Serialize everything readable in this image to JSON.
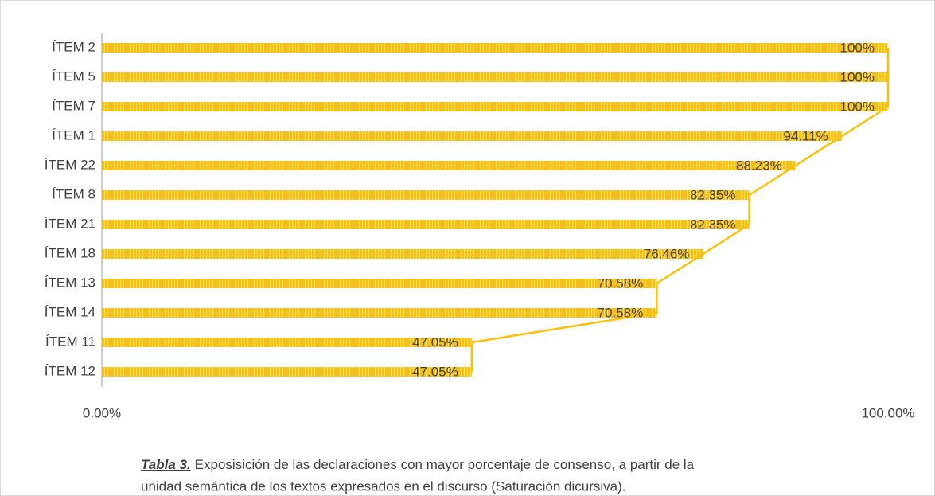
{
  "chart_data": {
    "type": "bar",
    "categories": [
      "ÍTEM 2",
      "ÍTEM 5",
      "ÍTEM 7",
      "ÍTEM 1",
      "ÍTEM 22",
      "ÍTEM 8",
      "ÍTEM 21",
      "ÍTEM 18",
      "ÍTEM 13",
      "ÍTEM 14",
      "ÍTEM 11",
      "ÍTEM 12"
    ],
    "values": [
      100,
      100,
      100,
      94.11,
      88.23,
      82.35,
      82.35,
      76.46,
      70.58,
      70.58,
      47.05,
      47.05
    ],
    "value_labels": [
      "100%",
      "100%",
      "100%",
      "94.11%",
      "88.23%",
      "82.35%",
      "82.35%",
      "76.46%",
      "70.58%",
      "70.58%",
      "47.05%",
      "47.05%"
    ],
    "color": "#ffc000",
    "line_overlay": true,
    "xlim": [
      0,
      100
    ],
    "xticks": [
      {
        "value": 0,
        "label": "0.00%"
      },
      {
        "value": 100,
        "label": "100.00%"
      }
    ],
    "caption": {
      "label": "Tabla 3.",
      "lines": [
        "Exposisición de las declaraciones con mayor porcentaje de consenso, a partir de la",
        "unidad semántica de los textos expresados en el discurso (Saturación dicursiva)."
      ]
    }
  }
}
